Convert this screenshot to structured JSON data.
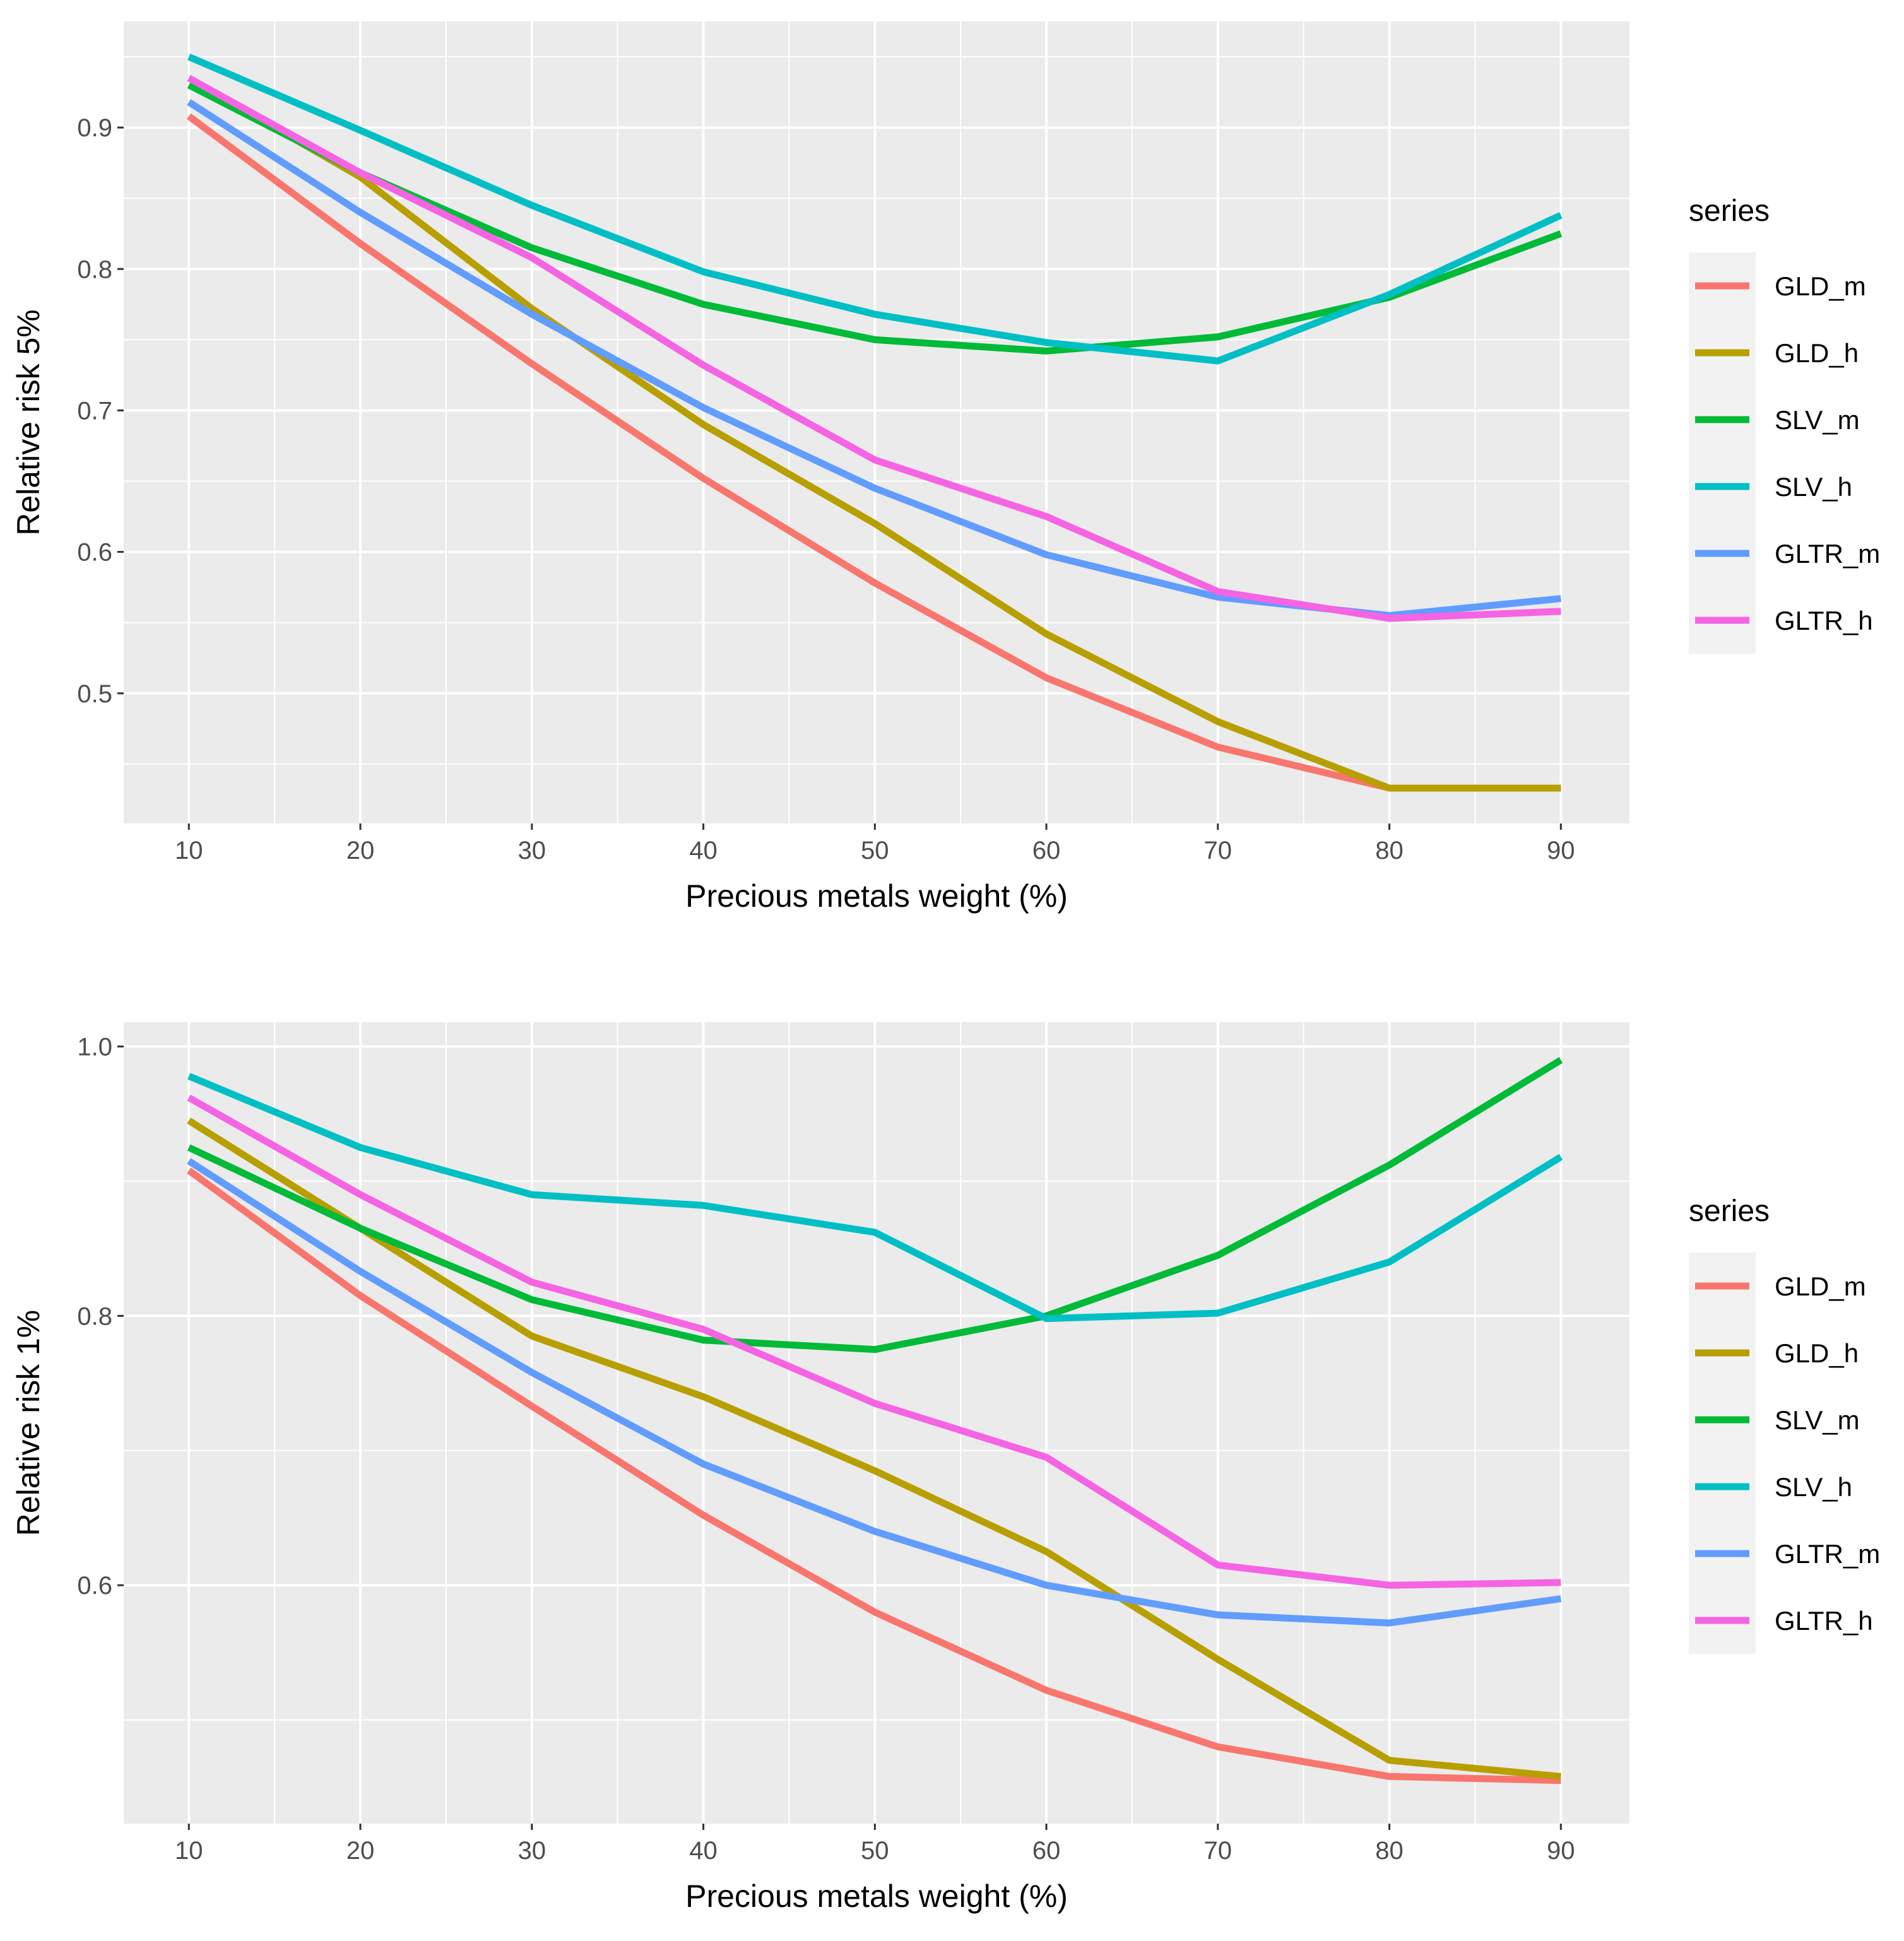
{
  "colors": {
    "panel_bg": "#EBEBEB",
    "grid": "#FFFFFF",
    "legend_key_bg": "#F2F2F2",
    "GLD_m": "#F8766D",
    "GLD_h": "#B79F00",
    "SLV_m": "#00BA38",
    "SLV_h": "#00BFC4",
    "GLTR_m": "#619CFF",
    "GLTR_h": "#F564E3"
  },
  "chart_data": [
    {
      "type": "line",
      "xlabel": "Precious metals weight (%)",
      "ylabel": "Relative risk 5%",
      "x": [
        10,
        20,
        30,
        40,
        50,
        60,
        70,
        80,
        90
      ],
      "xticks": [
        "10",
        "20",
        "30",
        "40",
        "50",
        "60",
        "70",
        "80",
        "90"
      ],
      "xlim": [
        6.2,
        94.0
      ],
      "yticks": [
        "0.5",
        "0.6",
        "0.7",
        "0.8",
        "0.9"
      ],
      "ytick_values": [
        0.5,
        0.6,
        0.7,
        0.8,
        0.9
      ],
      "ylim": [
        0.408,
        0.975
      ],
      "grid": true,
      "legend_title": "series",
      "legend_position": "right",
      "series": [
        {
          "name": "GLD_m",
          "values": [
            0.908,
            0.818,
            0.733,
            0.652,
            0.578,
            0.511,
            0.462,
            0.433,
            0.433
          ]
        },
        {
          "name": "GLD_h",
          "values": [
            0.935,
            0.865,
            0.772,
            0.69,
            0.62,
            0.542,
            0.48,
            0.433,
            0.433
          ]
        },
        {
          "name": "SLV_m",
          "values": [
            0.93,
            0.868,
            0.815,
            0.775,
            0.75,
            0.742,
            0.752,
            0.78,
            0.825
          ]
        },
        {
          "name": "SLV_h",
          "values": [
            0.95,
            0.898,
            0.845,
            0.798,
            0.768,
            0.748,
            0.735,
            0.782,
            0.838
          ]
        },
        {
          "name": "GLTR_m",
          "values": [
            0.918,
            0.84,
            0.768,
            0.702,
            0.645,
            0.598,
            0.568,
            0.555,
            0.567
          ]
        },
        {
          "name": "GLTR_h",
          "values": [
            0.935,
            0.868,
            0.808,
            0.732,
            0.665,
            0.625,
            0.572,
            0.553,
            0.558
          ]
        }
      ]
    },
    {
      "type": "line",
      "xlabel": "Precious metals weight (%)",
      "ylabel": "Relative risk 1%",
      "x": [
        10,
        20,
        30,
        40,
        50,
        60,
        70,
        80,
        90
      ],
      "xticks": [
        "10",
        "20",
        "30",
        "40",
        "50",
        "60",
        "70",
        "80",
        "90"
      ],
      "xlim": [
        6.2,
        94.0
      ],
      "yticks": [
        "0.6",
        "0.8",
        "1.0"
      ],
      "ytick_values": [
        0.6,
        0.8,
        1.0
      ],
      "ylim": [
        0.423,
        1.018
      ],
      "grid": true,
      "legend_title": "series",
      "legend_position": "right",
      "series": [
        {
          "name": "GLD_m",
          "values": [
            0.908,
            0.815,
            0.733,
            0.652,
            0.58,
            0.522,
            0.48,
            0.458,
            0.455
          ]
        },
        {
          "name": "GLD_h",
          "values": [
            0.945,
            0.865,
            0.785,
            0.74,
            0.685,
            0.625,
            0.545,
            0.47,
            0.458
          ]
        },
        {
          "name": "SLV_m",
          "values": [
            0.925,
            0.865,
            0.812,
            0.782,
            0.775,
            0.8,
            0.845,
            0.912,
            0.99
          ]
        },
        {
          "name": "SLV_h",
          "values": [
            0.978,
            0.925,
            0.89,
            0.882,
            0.862,
            0.798,
            0.802,
            0.84,
            0.918
          ]
        },
        {
          "name": "GLTR_m",
          "values": [
            0.915,
            0.833,
            0.758,
            0.69,
            0.64,
            0.6,
            0.578,
            0.572,
            0.59
          ]
        },
        {
          "name": "GLTR_h",
          "values": [
            0.962,
            0.89,
            0.825,
            0.79,
            0.735,
            0.695,
            0.615,
            0.6,
            0.602
          ]
        }
      ]
    }
  ]
}
